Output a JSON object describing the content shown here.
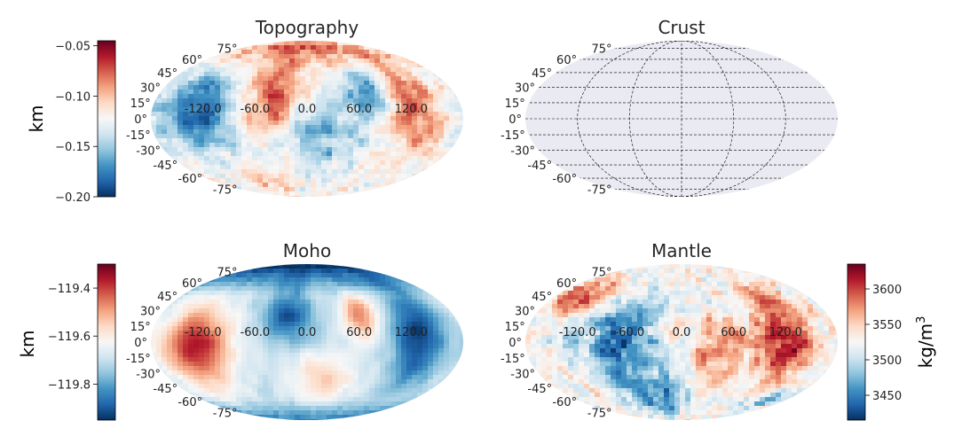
{
  "chart_data": [
    {
      "type": "heatmap",
      "title": "Topography",
      "projection": "mollweide",
      "colormap": "RdBu_r",
      "colorbar": {
        "side": "left",
        "label": "km",
        "range": [
          -0.2,
          -0.045
        ],
        "ticks": [
          -0.05,
          -0.1,
          -0.15,
          -0.2
        ],
        "tick_labels": [
          "−0.05",
          "−0.10",
          "−0.15",
          "−0.20"
        ]
      },
      "lon_labels": [
        "-120.0",
        "-60.0",
        "0.0",
        "60.0",
        "120.0"
      ],
      "lat_labels": [
        "75°",
        "60°",
        "45°",
        "30°",
        "15°",
        "0°",
        "-15°",
        "-30°",
        "-45°",
        "-60°",
        "-75°"
      ],
      "field": "topography",
      "empty": false
    },
    {
      "type": "heatmap",
      "title": "Crust",
      "projection": "mollweide",
      "colormap": "none",
      "colorbar": null,
      "lon_labels": [],
      "lat_labels": [
        "75°",
        "60°",
        "45°",
        "30°",
        "15°",
        "0°",
        "-15°",
        "-30°",
        "-45°",
        "-60°",
        "-75°"
      ],
      "field": "none",
      "empty": true,
      "grid": true
    },
    {
      "type": "heatmap",
      "title": "Moho",
      "projection": "mollweide",
      "colormap": "RdBu_r",
      "colorbar": {
        "side": "left",
        "label": "km",
        "range": [
          -119.95,
          -119.3
        ],
        "ticks": [
          -119.4,
          -119.6,
          -119.8
        ],
        "tick_labels": [
          "−119.4",
          "−119.6",
          "−119.8"
        ]
      },
      "lon_labels": [
        "-120.0",
        "-60.0",
        "0.0",
        "60.0",
        "120.0"
      ],
      "lat_labels": [
        "75°",
        "60°",
        "45°",
        "30°",
        "15°",
        "0°",
        "-15°",
        "-30°",
        "-45°",
        "-60°",
        "-75°"
      ],
      "field": "moho",
      "empty": false
    },
    {
      "type": "heatmap",
      "title": "Mantle",
      "projection": "mollweide",
      "colormap": "RdBu_r",
      "colorbar": {
        "side": "right",
        "label": "kg/m",
        "label_sup": "3",
        "range": [
          3415,
          3635
        ],
        "ticks": [
          3600,
          3550,
          3500,
          3450
        ],
        "tick_labels": [
          "3600",
          "3550",
          "3500",
          "3450"
        ]
      },
      "lon_labels": [
        "-120.0",
        "-60.0",
        "0.0",
        "60.0",
        "120.0"
      ],
      "lat_labels": [
        "75°",
        "60°",
        "45°",
        "30°",
        "15°",
        "0°",
        "-15°",
        "-30°",
        "-45°",
        "-60°",
        "-75°"
      ],
      "field": "mantle",
      "empty": false
    }
  ],
  "colors": {
    "crust_fill": "#eaeaf2",
    "grid_line": "#000000"
  }
}
